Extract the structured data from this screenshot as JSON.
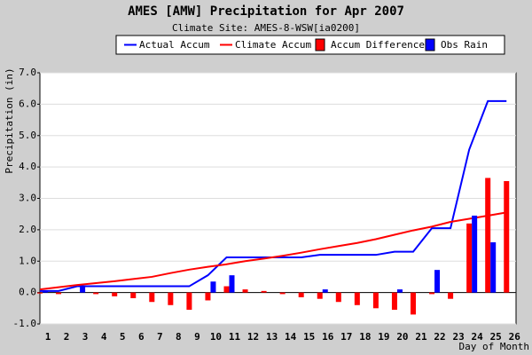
{
  "chart_data": {
    "type": "combo",
    "title": "AMES [AMW] Precipitation for Apr 2007",
    "subtitle": "Climate Site: AMES-8-WSW[ia0200]",
    "ylabel": "Precipitation (in)",
    "xlabel": "Day of Month",
    "categories": [
      "1",
      "2",
      "3",
      "4",
      "5",
      "6",
      "7",
      "8",
      "9",
      "10",
      "11",
      "12",
      "13",
      "14",
      "15",
      "16",
      "17",
      "18",
      "19",
      "20",
      "21",
      "22",
      "23",
      "24",
      "25",
      "26"
    ],
    "series": [
      {
        "name": "Actual Accum",
        "type": "line",
        "color": "#0000ff",
        "values": [
          0.05,
          0.05,
          0.2,
          0.2,
          0.2,
          0.2,
          0.2,
          0.2,
          0.2,
          0.55,
          1.12,
          1.12,
          1.12,
          1.12,
          1.12,
          1.2,
          1.2,
          1.2,
          1.2,
          1.3,
          1.3,
          2.05,
          2.05,
          4.55,
          6.1,
          6.1
        ]
      },
      {
        "name": "Climate Accum",
        "type": "line",
        "color": "#ff0000",
        "values": [
          0.1,
          0.17,
          0.24,
          0.3,
          0.36,
          0.43,
          0.5,
          0.62,
          0.73,
          0.82,
          0.9,
          1.0,
          1.08,
          1.17,
          1.27,
          1.38,
          1.48,
          1.58,
          1.7,
          1.84,
          1.98,
          2.1,
          2.25,
          2.35,
          2.45,
          2.55
        ]
      },
      {
        "name": "Accum Difference",
        "type": "bar",
        "color": "#ff0000",
        "values": [
          -0.03,
          -0.05,
          0.0,
          -0.05,
          -0.12,
          -0.18,
          -0.3,
          -0.4,
          -0.55,
          -0.25,
          0.2,
          0.1,
          0.05,
          -0.05,
          -0.15,
          -0.2,
          -0.3,
          -0.4,
          -0.5,
          -0.55,
          -0.7,
          -0.05,
          -0.2,
          2.2,
          3.65,
          3.55
        ]
      },
      {
        "name": "Obs Rain",
        "type": "bar",
        "color": "#0000ff",
        "values": [
          0.05,
          null,
          0.2,
          null,
          null,
          null,
          null,
          null,
          null,
          0.35,
          0.55,
          null,
          null,
          null,
          null,
          0.1,
          null,
          null,
          null,
          0.1,
          null,
          0.72,
          null,
          2.45,
          1.6,
          null
        ]
      }
    ],
    "ylim": [
      -1.0,
      7.0
    ],
    "yticks": [
      {
        "value": -1,
        "label": "-1.0"
      },
      {
        "value": 0,
        "label": "0.0"
      },
      {
        "value": 1,
        "label": "1.0"
      },
      {
        "value": 2,
        "label": "2.0"
      },
      {
        "value": 3,
        "label": "3.0"
      },
      {
        "value": 4,
        "label": "4.0"
      },
      {
        "value": 5,
        "label": "5.0"
      },
      {
        "value": 6,
        "label": "6.0"
      },
      {
        "value": 7,
        "label": "7.0"
      }
    ],
    "grid": true
  }
}
